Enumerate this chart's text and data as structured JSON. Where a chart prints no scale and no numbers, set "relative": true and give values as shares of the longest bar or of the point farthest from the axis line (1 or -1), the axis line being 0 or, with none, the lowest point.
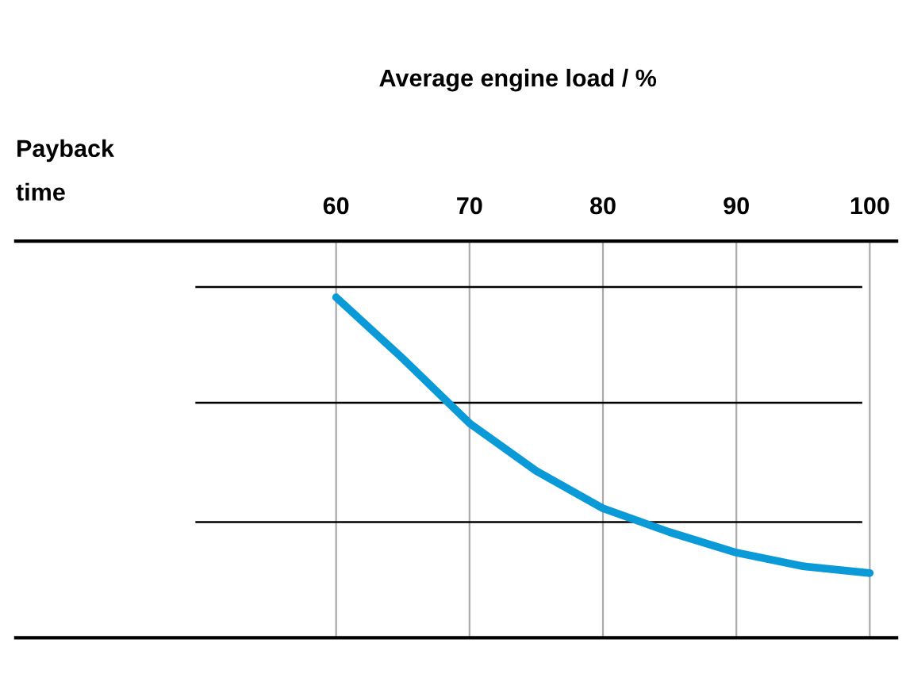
{
  "chart_data": {
    "type": "line",
    "relative": true,
    "xlabel": "Average engine load / %",
    "ylabel": "Payback\ntime",
    "x": [
      60,
      65,
      70,
      75,
      80,
      85,
      90,
      95,
      100
    ],
    "series": [
      {
        "color": "#0a9ad8",
        "values": [
          1,
          0.82,
          0.63,
          0.49,
          0.38,
          0.31,
          0.25,
          0.21,
          0.19
        ]
      }
    ],
    "xlim": [
      36,
      102
    ],
    "xticks": [
      60,
      70,
      80,
      90,
      100
    ],
    "grid": "x",
    "ref_lines": [
      {
        "axis": "y",
        "value": 0.34,
        "color": "#000000"
      },
      {
        "axis": "y",
        "value": 0.69,
        "color": "#000000"
      },
      {
        "axis": "y",
        "value": 1.03,
        "color": "#000000"
      }
    ],
    "marker": "none",
    "line_style": "solid"
  }
}
